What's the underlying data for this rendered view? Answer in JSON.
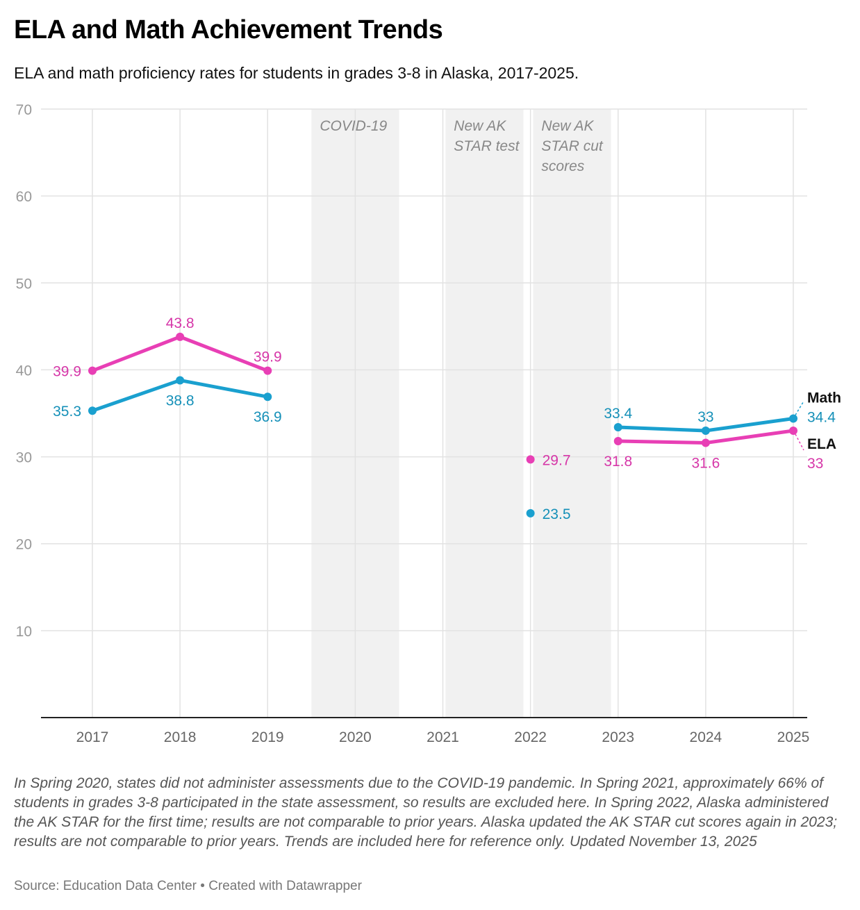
{
  "title": "ELA and Math Achievement Trends",
  "subtitle": "ELA and math proficiency rates for students in grades 3-8 in Alaska, 2017-2025.",
  "note": "In Spring 2020, states did not administer assessments due to the COVID-19 pandemic. In Spring 2021, approximately 66% of students in grades 3-8 participated in the state assessment, so results are excluded here. In Spring 2022, Alaska administered the AK STAR for the first time; results are not comparable to prior years. Alaska updated the AK STAR cut scores again in 2023; results are not comparable to prior years. Trends are included here for reference only. Updated November 13, 2025",
  "source": "Source: Education Data Center • Created with Datawrapper",
  "chart_data": {
    "type": "line",
    "x": [
      2017,
      2018,
      2019,
      2020,
      2021,
      2022,
      2023,
      2024,
      2025
    ],
    "ylim": [
      0,
      70
    ],
    "yticks": [
      10,
      20,
      30,
      40,
      50,
      60,
      70
    ],
    "grid": true,
    "series": [
      {
        "name": "Math",
        "color": "#1aa0cf",
        "label_color": "#1590b8",
        "values": [
          35.3,
          38.8,
          36.9,
          null,
          null,
          23.5,
          33.4,
          33,
          34.4
        ],
        "label_pos": [
          "left",
          "below",
          "below",
          null,
          null,
          "right",
          "above",
          "above",
          "end"
        ]
      },
      {
        "name": "ELA",
        "color": "#e83fb5",
        "label_color": "#d636a8",
        "values": [
          39.9,
          43.8,
          39.9,
          null,
          null,
          29.7,
          31.8,
          31.6,
          33
        ],
        "label_pos": [
          "left",
          "above",
          "above",
          null,
          null,
          "right",
          "below",
          "below",
          "end"
        ]
      }
    ],
    "segments_connected": [
      [
        0,
        2
      ],
      [
        6,
        8
      ]
    ],
    "annotations": [
      {
        "lines": [
          "COVID-19"
        ],
        "from": 2019.5,
        "to": 2020.5
      },
      {
        "lines": [
          "New AK",
          "STAR test"
        ],
        "from": 2021.03,
        "to": 2021.92
      },
      {
        "lines": [
          "New AK",
          "STAR cut",
          "scores"
        ],
        "from": 2022.03,
        "to": 2022.92
      }
    ]
  }
}
